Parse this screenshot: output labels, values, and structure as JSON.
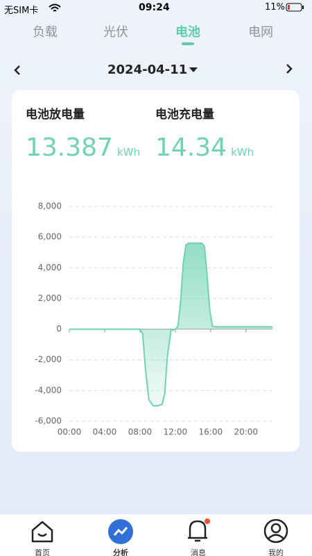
{
  "status_bar": {
    "carrier": "无SIM卡",
    "time": "09:24",
    "battery": "11%"
  },
  "tabs": [
    "负载",
    "光伏",
    "电池",
    "电网"
  ],
  "date_nav": {
    "date": "2024-04-11"
  },
  "summary": {
    "discharge_label": "电池放电量",
    "discharge_value": 13.387,
    "discharge_unit": "kWh",
    "charge_label": "电池充电量",
    "charge_value": 14.34,
    "charge_unit": "kWh"
  },
  "chart_data": {
    "type": "area",
    "x": [
      0,
      1,
      2,
      3,
      4,
      5,
      6,
      7,
      8,
      8.3,
      8.6,
      9,
      9.5,
      10,
      10.5,
      10.8,
      11.1,
      11.5,
      12,
      12.3,
      12.6,
      12.9,
      13.2,
      13.5,
      14,
      14.5,
      15,
      15.3,
      15.6,
      15.9,
      16.2,
      16.5,
      17,
      18,
      19,
      20,
      21,
      22,
      23
    ],
    "values": [
      0,
      0,
      0,
      0,
      0,
      0,
      0,
      0,
      0,
      -300,
      -2500,
      -4600,
      -5000,
      -5000,
      -4900,
      -4200,
      -1800,
      -100,
      0,
      200,
      1800,
      4300,
      5500,
      5600,
      5600,
      5600,
      5600,
      5400,
      3500,
      1200,
      200,
      150,
      150,
      150,
      150,
      150,
      150,
      150,
      150
    ],
    "color": "#6fd3b0",
    "xlim": [
      0,
      23
    ],
    "xticks": [
      {
        "value": 0,
        "label": "00:00"
      },
      {
        "value": 4,
        "label": "04:00"
      },
      {
        "value": 8,
        "label": "08:00"
      },
      {
        "value": 12,
        "label": "12:00"
      },
      {
        "value": 16,
        "label": "16:00"
      },
      {
        "value": 20,
        "label": "20:00"
      }
    ],
    "ylim": [
      -6000,
      8000
    ],
    "yticks": [
      {
        "value": 8000,
        "label": "8,000"
      },
      {
        "value": 6000,
        "label": "6,000"
      },
      {
        "value": 4000,
        "label": "4,000"
      },
      {
        "value": 2000,
        "label": "2,000"
      },
      0,
      {
        "value": -2000,
        "label": "-2,000"
      },
      {
        "value": -4000,
        "label": "-4,000"
      },
      {
        "value": -6000,
        "label": "-6,000"
      }
    ],
    "grid": true
  },
  "bottom_nav": [
    "首页",
    "分析",
    "消息",
    "我的"
  ]
}
